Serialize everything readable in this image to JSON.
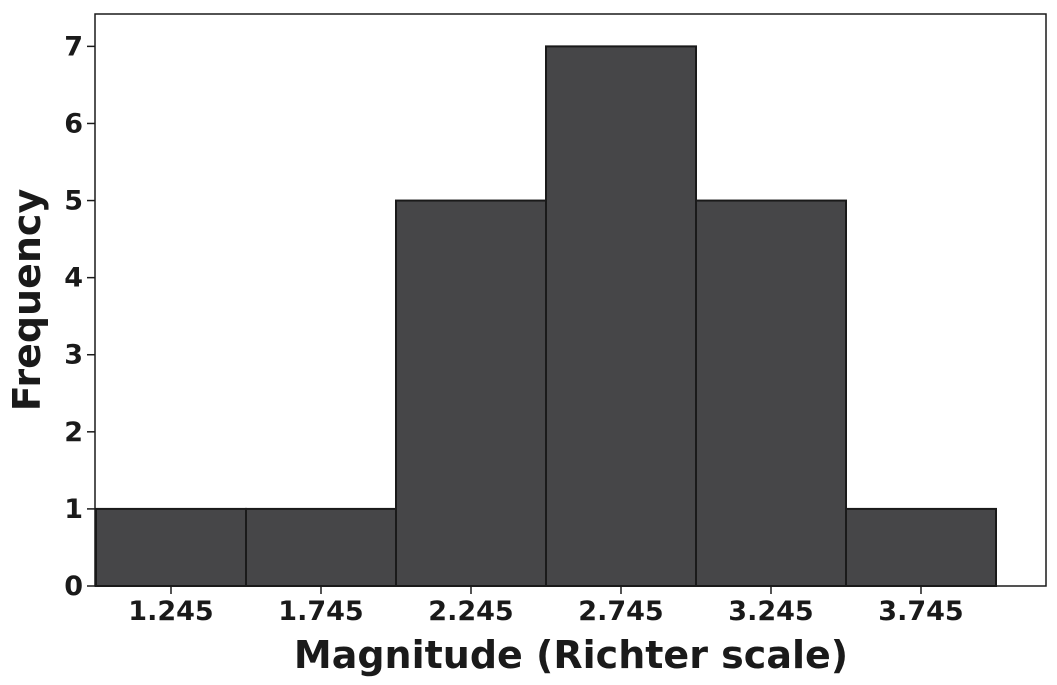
{
  "chart_data": {
    "type": "bar",
    "subtype": "histogram",
    "categories": [
      "1.245",
      "1.745",
      "2.245",
      "2.745",
      "3.245",
      "3.745"
    ],
    "values": [
      1,
      1,
      5,
      7,
      5,
      1
    ],
    "bin_width": 0.5,
    "xlabel": "Magnitude (Richter scale)",
    "ylabel": "Frequency",
    "ylim": [
      0,
      7.42
    ],
    "y_ticks": [
      "0",
      "1",
      "2",
      "3",
      "4",
      "5",
      "6",
      "7"
    ],
    "grid": false,
    "legend": "none",
    "colors": {
      "bar_fill": "#464648",
      "bar_stroke": "#1a1a1a",
      "axis": "#1a1a1a"
    }
  }
}
